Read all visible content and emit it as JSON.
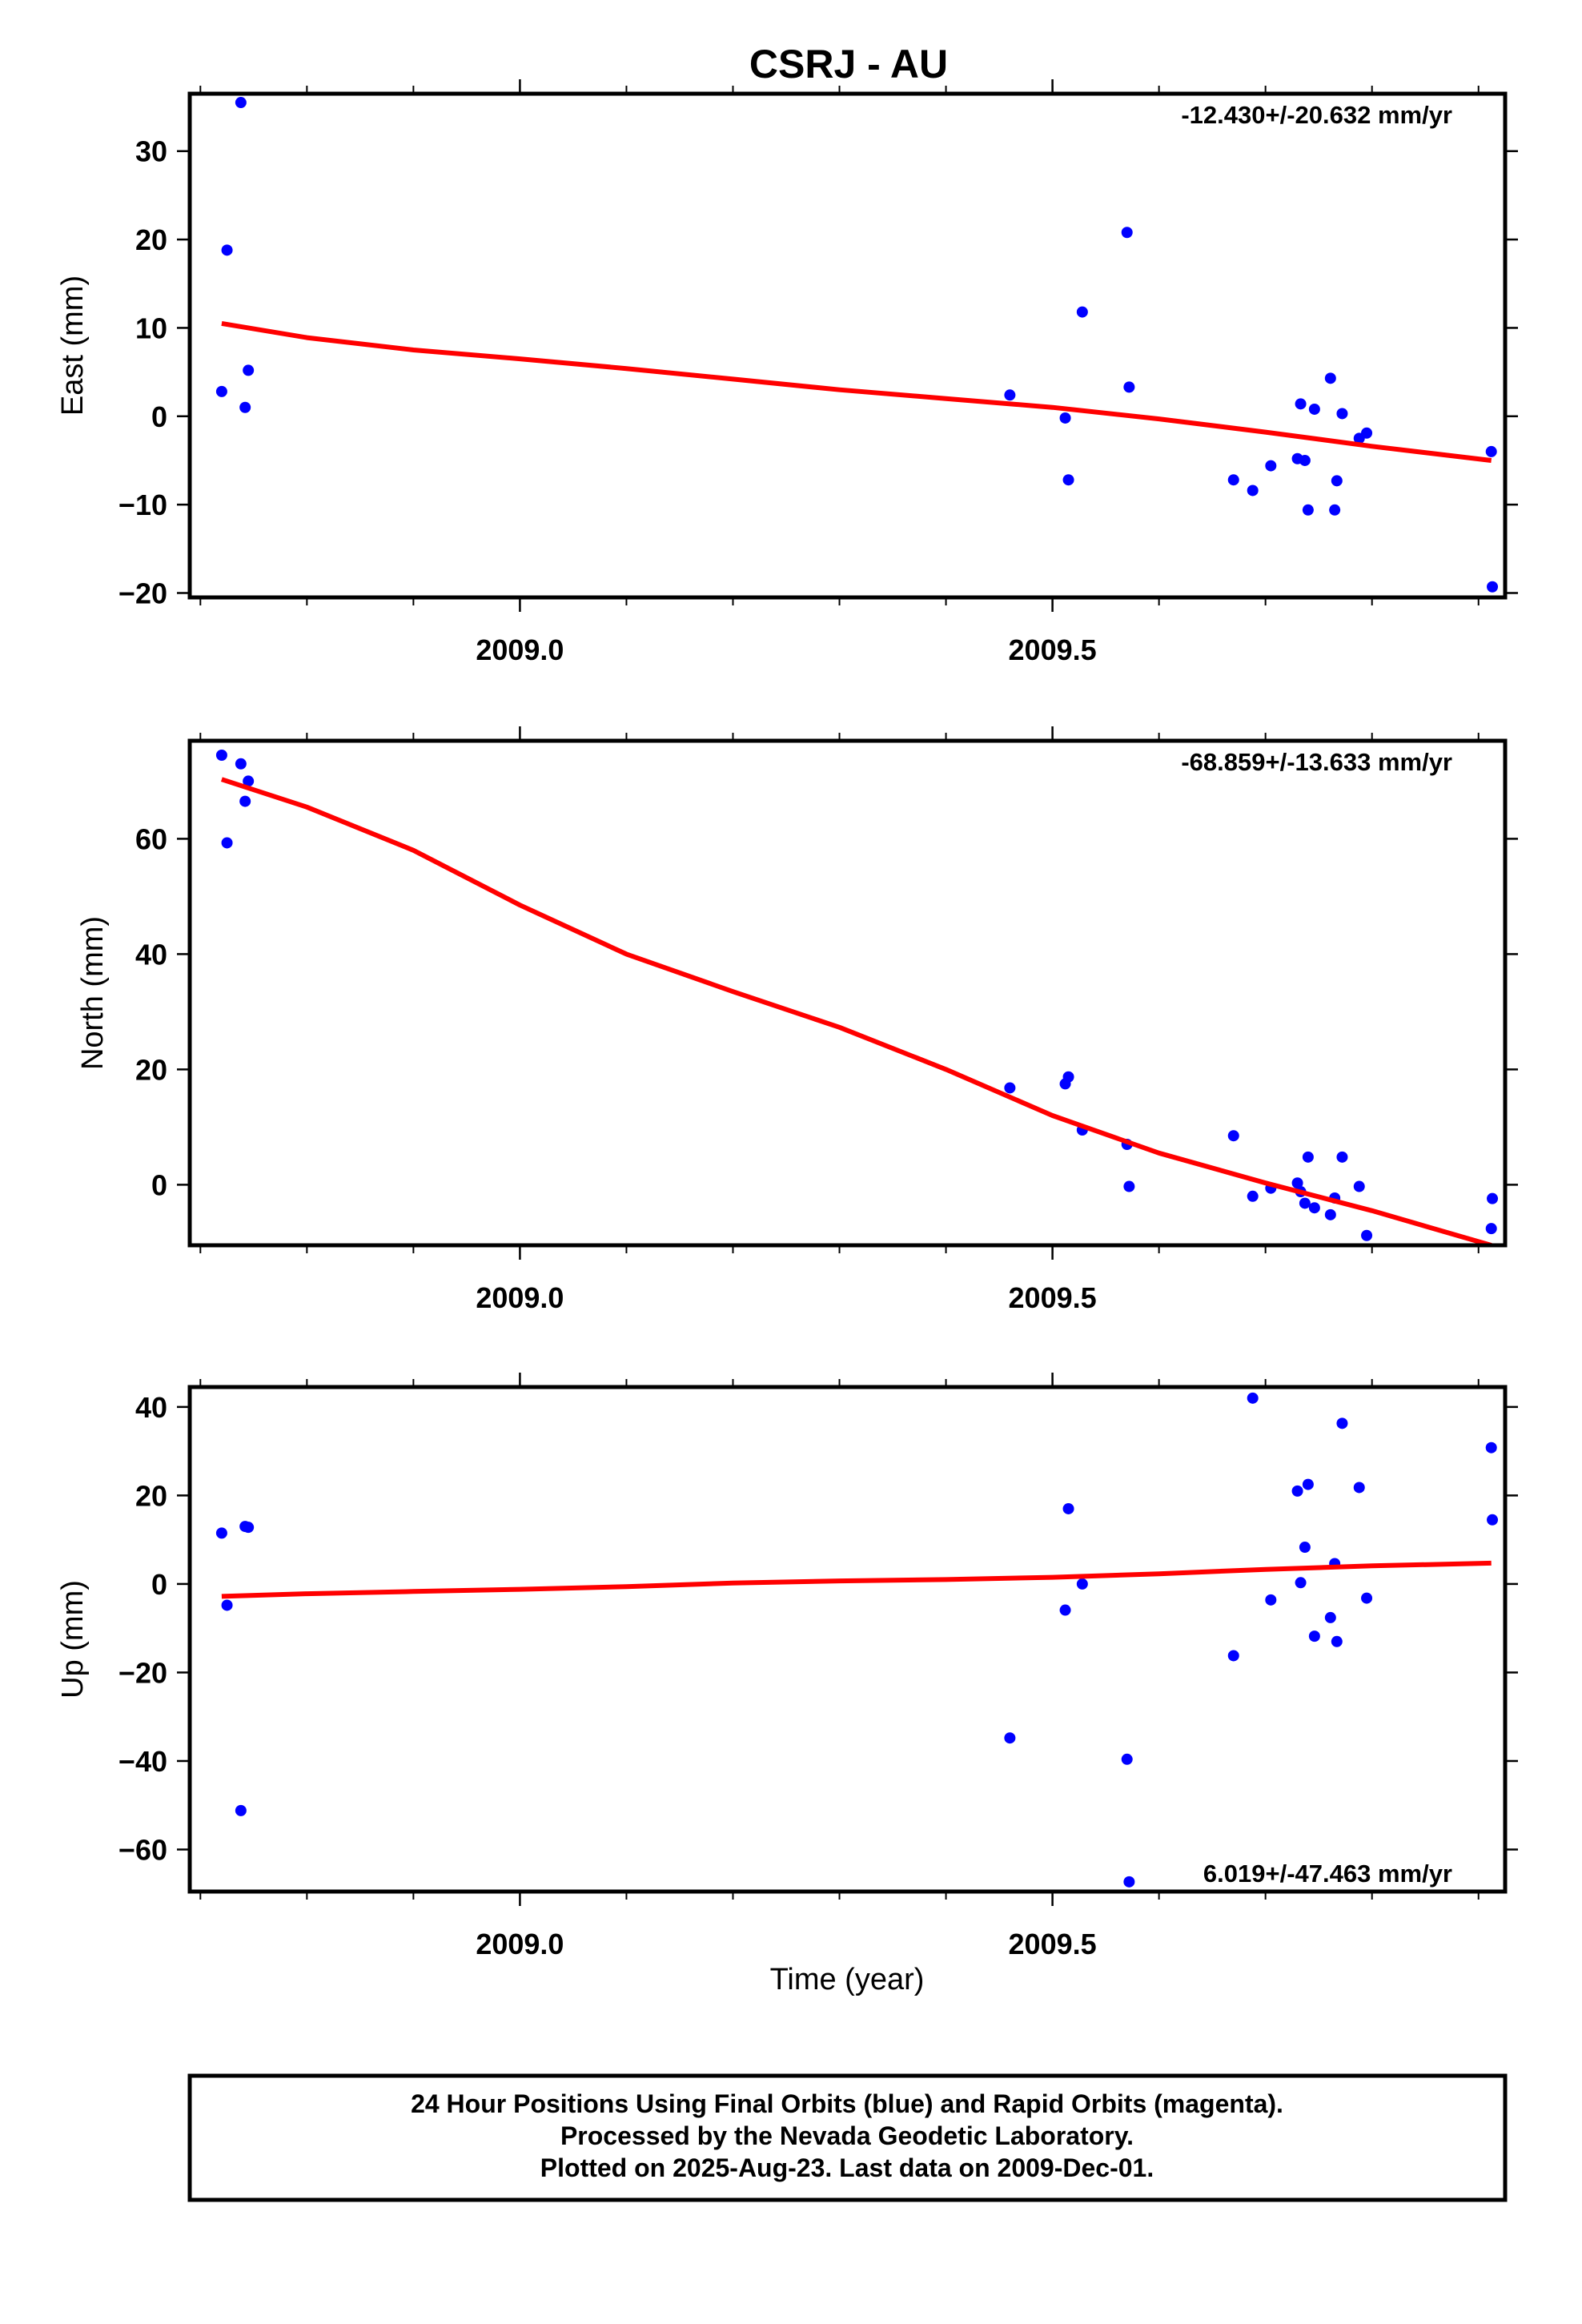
{
  "title": "CSRJ - AU",
  "xlabel": "Time (year)",
  "footer": {
    "line1": "24 Hour Positions Using Final Orbits (blue) and Rapid Orbits (magenta).",
    "line2": "Processed by the Nevada Geodetic Laboratory.",
    "line3": "Plotted on 2025-Aug-23. Last data on 2009-Dec-01."
  },
  "colors": {
    "points": "#0000ff",
    "fit": "#ff0000",
    "frame": "#000000"
  },
  "chart_data": [
    {
      "type": "scatter",
      "ylabel": "East (mm)",
      "rate_text": "-12.430+/-20.632 mm/yr",
      "rate_position": "top-right",
      "xlim": [
        2008.69,
        2009.925
      ],
      "ylim": [
        -20.5,
        36.5
      ],
      "xticks_major": [
        2009.0,
        2009.5
      ],
      "xtick_labels": [
        "2009.0",
        "2009.5"
      ],
      "yticks": [
        -20,
        -10,
        0,
        10,
        20,
        30
      ],
      "ytick_labels": [
        "−20",
        "−10",
        "0",
        "10",
        "20",
        "30"
      ],
      "points": [
        [
          2008.72,
          2.8
        ],
        [
          2008.725,
          18.8
        ],
        [
          2008.738,
          35.5
        ],
        [
          2008.742,
          1.0
        ],
        [
          2008.745,
          5.2
        ],
        [
          2009.46,
          2.4
        ],
        [
          2009.512,
          -0.2
        ],
        [
          2009.515,
          -7.2
        ],
        [
          2009.528,
          11.8
        ],
        [
          2009.57,
          20.8
        ],
        [
          2009.572,
          3.3
        ],
        [
          2009.67,
          -7.2
        ],
        [
          2009.688,
          -8.4
        ],
        [
          2009.705,
          -5.6
        ],
        [
          2009.73,
          -4.8
        ],
        [
          2009.733,
          1.4
        ],
        [
          2009.737,
          -5.0
        ],
        [
          2009.74,
          -10.6
        ],
        [
          2009.746,
          0.8
        ],
        [
          2009.761,
          4.3
        ],
        [
          2009.765,
          -10.6
        ],
        [
          2009.767,
          -7.3
        ],
        [
          2009.772,
          0.3
        ],
        [
          2009.788,
          -2.5
        ],
        [
          2009.795,
          -1.9
        ],
        [
          2009.912,
          -4.0
        ],
        [
          2009.913,
          -19.3
        ]
      ],
      "fit": [
        [
          2008.72,
          10.5
        ],
        [
          2008.8,
          8.9
        ],
        [
          2008.9,
          7.5
        ],
        [
          2009.0,
          6.5
        ],
        [
          2009.1,
          5.4
        ],
        [
          2009.2,
          4.2
        ],
        [
          2009.3,
          3.0
        ],
        [
          2009.4,
          2.0
        ],
        [
          2009.5,
          1.0
        ],
        [
          2009.6,
          -0.3
        ],
        [
          2009.7,
          -1.8
        ],
        [
          2009.8,
          -3.4
        ],
        [
          2009.912,
          -5.0
        ]
      ]
    },
    {
      "type": "scatter",
      "ylabel": "North (mm)",
      "rate_text": "-68.859+/-13.633 mm/yr",
      "rate_position": "top-right",
      "xlim": [
        2008.69,
        2009.925
      ],
      "ylim": [
        -10.5,
        77
      ],
      "xticks_major": [
        2009.0,
        2009.5
      ],
      "xtick_labels": [
        "2009.0",
        "2009.5"
      ],
      "yticks": [
        0,
        20,
        40,
        60
      ],
      "ytick_labels": [
        "0",
        "20",
        "40",
        "60"
      ],
      "points": [
        [
          2008.72,
          74.5
        ],
        [
          2008.725,
          59.3
        ],
        [
          2008.738,
          73.0
        ],
        [
          2008.742,
          66.5
        ],
        [
          2008.745,
          70.0
        ],
        [
          2009.46,
          16.8
        ],
        [
          2009.512,
          17.5
        ],
        [
          2009.515,
          18.7
        ],
        [
          2009.528,
          9.5
        ],
        [
          2009.57,
          7.0
        ],
        [
          2009.572,
          -0.3
        ],
        [
          2009.67,
          8.5
        ],
        [
          2009.688,
          -2.0
        ],
        [
          2009.705,
          -0.6
        ],
        [
          2009.73,
          0.3
        ],
        [
          2009.733,
          -1.2
        ],
        [
          2009.737,
          -3.2
        ],
        [
          2009.74,
          4.8
        ],
        [
          2009.746,
          -4.0
        ],
        [
          2009.761,
          -5.2
        ],
        [
          2009.765,
          -2.3
        ],
        [
          2009.772,
          4.8
        ],
        [
          2009.788,
          -0.3
        ],
        [
          2009.795,
          -8.8
        ],
        [
          2009.912,
          -7.6
        ],
        [
          2009.913,
          -2.4
        ]
      ],
      "fit": [
        [
          2008.72,
          70.3
        ],
        [
          2008.8,
          65.5
        ],
        [
          2008.9,
          58.0
        ],
        [
          2009.0,
          48.5
        ],
        [
          2009.1,
          40.0
        ],
        [
          2009.2,
          33.5
        ],
        [
          2009.3,
          27.3
        ],
        [
          2009.4,
          20.0
        ],
        [
          2009.5,
          12.0
        ],
        [
          2009.6,
          5.5
        ],
        [
          2009.7,
          0.3
        ],
        [
          2009.8,
          -4.5
        ],
        [
          2009.912,
          -10.5
        ]
      ]
    },
    {
      "type": "scatter",
      "ylabel": "Up (mm)",
      "rate_text": "6.019+/-47.463 mm/yr",
      "rate_position": "bottom-right",
      "xlim": [
        2008.69,
        2009.925
      ],
      "ylim": [
        -69.5,
        44.5
      ],
      "xticks_major": [
        2009.0,
        2009.5
      ],
      "xtick_labels": [
        "2009.0",
        "2009.5"
      ],
      "yticks": [
        -60,
        -40,
        -20,
        0,
        20,
        40
      ],
      "ytick_labels": [
        "−60",
        "−40",
        "−20",
        "0",
        "20",
        "40"
      ],
      "points": [
        [
          2008.72,
          11.5
        ],
        [
          2008.725,
          -4.8
        ],
        [
          2008.738,
          -51.2
        ],
        [
          2008.742,
          13.0
        ],
        [
          2008.745,
          12.8
        ],
        [
          2009.46,
          -34.8
        ],
        [
          2009.512,
          -5.9
        ],
        [
          2009.515,
          17.0
        ],
        [
          2009.528,
          0.0
        ],
        [
          2009.57,
          -39.6
        ],
        [
          2009.572,
          -67.3
        ],
        [
          2009.67,
          -16.2
        ],
        [
          2009.688,
          42.0
        ],
        [
          2009.705,
          -3.6
        ],
        [
          2009.73,
          21.0
        ],
        [
          2009.733,
          0.3
        ],
        [
          2009.737,
          8.3
        ],
        [
          2009.74,
          22.5
        ],
        [
          2009.746,
          -11.8
        ],
        [
          2009.761,
          -7.6
        ],
        [
          2009.765,
          4.6
        ],
        [
          2009.767,
          -13.0
        ],
        [
          2009.772,
          36.3
        ],
        [
          2009.788,
          21.8
        ],
        [
          2009.795,
          -3.2
        ],
        [
          2009.912,
          30.8
        ],
        [
          2009.913,
          14.5
        ]
      ],
      "fit": [
        [
          2008.72,
          -2.8
        ],
        [
          2008.8,
          -2.2
        ],
        [
          2008.9,
          -1.7
        ],
        [
          2009.0,
          -1.2
        ],
        [
          2009.1,
          -0.6
        ],
        [
          2009.2,
          0.2
        ],
        [
          2009.3,
          0.7
        ],
        [
          2009.4,
          1.0
        ],
        [
          2009.5,
          1.5
        ],
        [
          2009.6,
          2.3
        ],
        [
          2009.7,
          3.3
        ],
        [
          2009.8,
          4.1
        ],
        [
          2009.912,
          4.7
        ]
      ]
    }
  ]
}
